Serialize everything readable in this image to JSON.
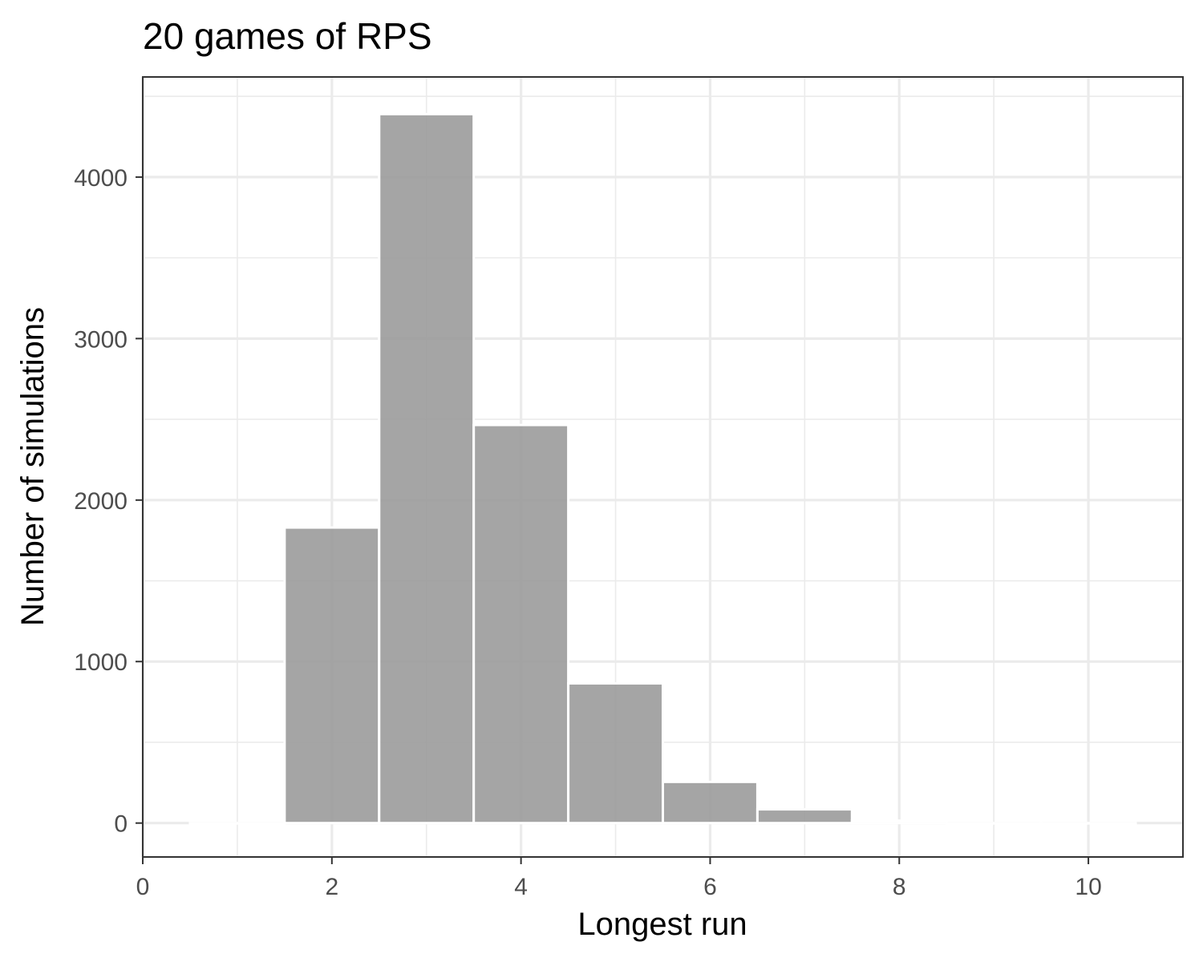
{
  "chart_data": {
    "type": "bar",
    "title": "20 games of RPS",
    "xlabel": "Longest run",
    "ylabel": "Number of simulations",
    "x": [
      1,
      2,
      3,
      4,
      5,
      6,
      7,
      8,
      9,
      10
    ],
    "values": [
      0,
      1830,
      4390,
      2465,
      865,
      255,
      85,
      15,
      0,
      0
    ],
    "bin_width": 1,
    "xlim": [
      0,
      11
    ],
    "ylim": [
      -210,
      4620
    ],
    "x_ticks": [
      0,
      2,
      4,
      6,
      8,
      10
    ],
    "x_tick_labels": [
      "0",
      "2",
      "4",
      "6",
      "8",
      "10"
    ],
    "x_minor_gridlines": [
      1,
      3,
      5,
      7,
      9
    ],
    "y_ticks": [
      0,
      1000,
      2000,
      3000,
      4000
    ],
    "y_tick_labels": [
      "0",
      "1000",
      "2000",
      "3000",
      "4000"
    ],
    "y_minor_gridlines": [
      500,
      1500,
      2500,
      3500,
      4500
    ],
    "grid": true,
    "legend": "none",
    "colors": {
      "bar_fill": "#999999",
      "bar_opacity": 0.88,
      "bar_outline": "#ffffff",
      "grid": "#ebebeb",
      "panel_border": "#333333",
      "tick_text": "#4d4d4d",
      "text": "#000000"
    }
  }
}
